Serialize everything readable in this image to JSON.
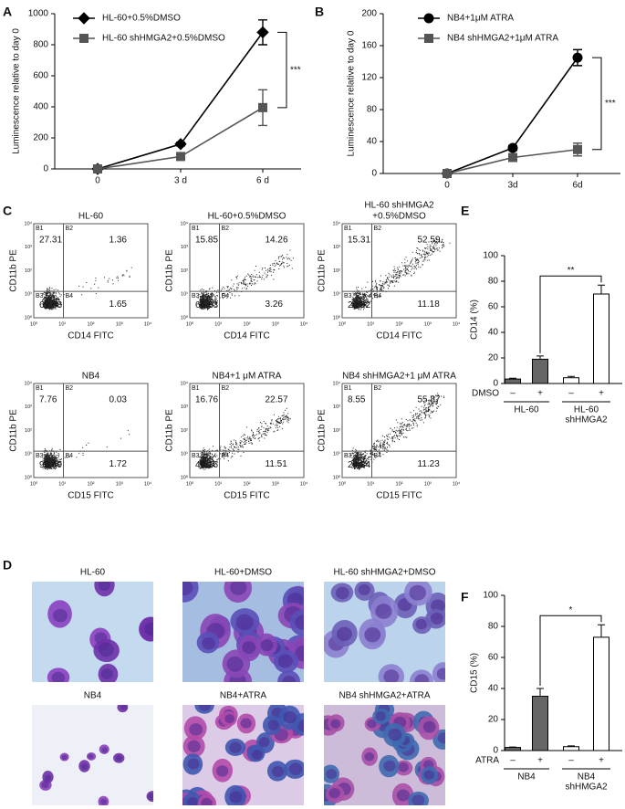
{
  "chart_data": [
    {
      "panel": "A",
      "type": "line",
      "ylabel": "Luminescence relative to day 0",
      "categories": [
        "0",
        "3 d",
        "6 d"
      ],
      "ylim": [
        0,
        1000
      ],
      "yticks": [
        0,
        200,
        400,
        600,
        800,
        1000
      ],
      "legend": "upper left",
      "annotation": "***",
      "series": [
        {
          "name": "HL-60+0.5%DMSO",
          "color": "#000000",
          "marker": "diamond",
          "values": [
            0,
            160,
            880
          ],
          "errors": [
            0,
            12,
            80
          ]
        },
        {
          "name": "HL-60 shHMGA2+0.5%DMSO",
          "color": "#555555",
          "marker": "square",
          "values": [
            0,
            80,
            395
          ],
          "errors": [
            0,
            12,
            115
          ]
        }
      ]
    },
    {
      "panel": "B",
      "type": "line",
      "ylabel": "Luminescence relative to day 0",
      "categories": [
        "0",
        "3d",
        "6d"
      ],
      "ylim": [
        0,
        200
      ],
      "yticks": [
        0,
        40,
        80,
        120,
        160,
        200
      ],
      "legend": "upper left",
      "annotation": "***",
      "series": [
        {
          "name": "NB4+1μM ATRA",
          "color": "#000000",
          "marker": "circle",
          "values": [
            0,
            32,
            145
          ],
          "errors": [
            0,
            3,
            10
          ]
        },
        {
          "name": "NB4 shHMGA2+1μM ATRA",
          "color": "#555555",
          "marker": "square",
          "values": [
            0,
            20,
            30
          ],
          "errors": [
            0,
            3,
            8
          ]
        }
      ]
    },
    {
      "panel": "E",
      "type": "bar",
      "ylabel": "CD14 (%)",
      "treatment": "DMSO",
      "categories": [
        "–",
        "+",
        "–",
        "+"
      ],
      "values": [
        3.5,
        19,
        4.5,
        70
      ],
      "errors": [
        0.6,
        2.5,
        1,
        7
      ],
      "colors": [
        "#666666",
        "#666666",
        "#ffffff",
        "#ffffff"
      ],
      "groups": [
        [
          "HL-60"
        ],
        [
          "HL-60",
          "shHMGA2"
        ]
      ],
      "annotation": "**",
      "ylim": [
        0,
        100
      ],
      "yticks": [
        0,
        20,
        40,
        60,
        80,
        100
      ]
    },
    {
      "panel": "F",
      "type": "bar",
      "ylabel": "CD15 (%)",
      "treatment": "ATRA",
      "categories": [
        "–",
        "+",
        "–",
        "+"
      ],
      "values": [
        2,
        35,
        2.5,
        73
      ],
      "errors": [
        0.3,
        5,
        0.5,
        8
      ],
      "colors": [
        "#666666",
        "#666666",
        "#ffffff",
        "#ffffff"
      ],
      "groups": [
        [
          "NB4"
        ],
        [
          "NB4",
          "shHMGA2"
        ]
      ],
      "annotation": "*",
      "ylim": [
        0,
        100
      ],
      "yticks": [
        0,
        20,
        40,
        60,
        80,
        100
      ]
    }
  ],
  "flow": {
    "panel": "C",
    "ylabel": "CD11b PE",
    "ticks": [
      "10⁰",
      "10¹",
      "10²",
      "10³",
      "10⁴"
    ],
    "quadrants": [
      "B1",
      "B2",
      "B3",
      "B4"
    ],
    "plots": [
      {
        "title": [
          "HL-60"
        ],
        "xlabel": "CD14 FITC",
        "values": [
          "27.31",
          "1.36",
          "69.68",
          "1.65"
        ]
      },
      {
        "title": [
          "HL-60+0.5%DMSO"
        ],
        "xlabel": "CD14 FITC",
        "values": [
          "15.85",
          "14.26",
          "66.63",
          "3.26"
        ]
      },
      {
        "title": [
          "HL-60 shHMGA2",
          "+0.5%DMSO"
        ],
        "xlabel": "CD14 FITC",
        "values": [
          "15.31",
          "52.59",
          "20.92",
          "11.18"
        ]
      },
      {
        "title": [
          "NB4"
        ],
        "xlabel": "CD15 FITC",
        "values": [
          "7.76",
          "0.03",
          "90.49",
          "1.72"
        ]
      },
      {
        "title": [
          "NB4+1 μM ATRA"
        ],
        "xlabel": "CD15 FITC",
        "values": [
          "16.76",
          "22.57",
          "49.16",
          "11.51"
        ]
      },
      {
        "title": [
          "NB4 shHMGA2+1 μM ATRA"
        ],
        "xlabel": "CD15 FITC",
        "values": [
          "8.55",
          "55.87",
          "24.34",
          "11.23"
        ]
      }
    ]
  },
  "micrographs": {
    "panel": "D",
    "titles": [
      "HL-60",
      "HL-60+DMSO",
      "HL-60 shHMGA2+DMSO",
      "NB4",
      "NB4+ATRA",
      "NB4 shHMGA2+ATRA"
    ]
  }
}
